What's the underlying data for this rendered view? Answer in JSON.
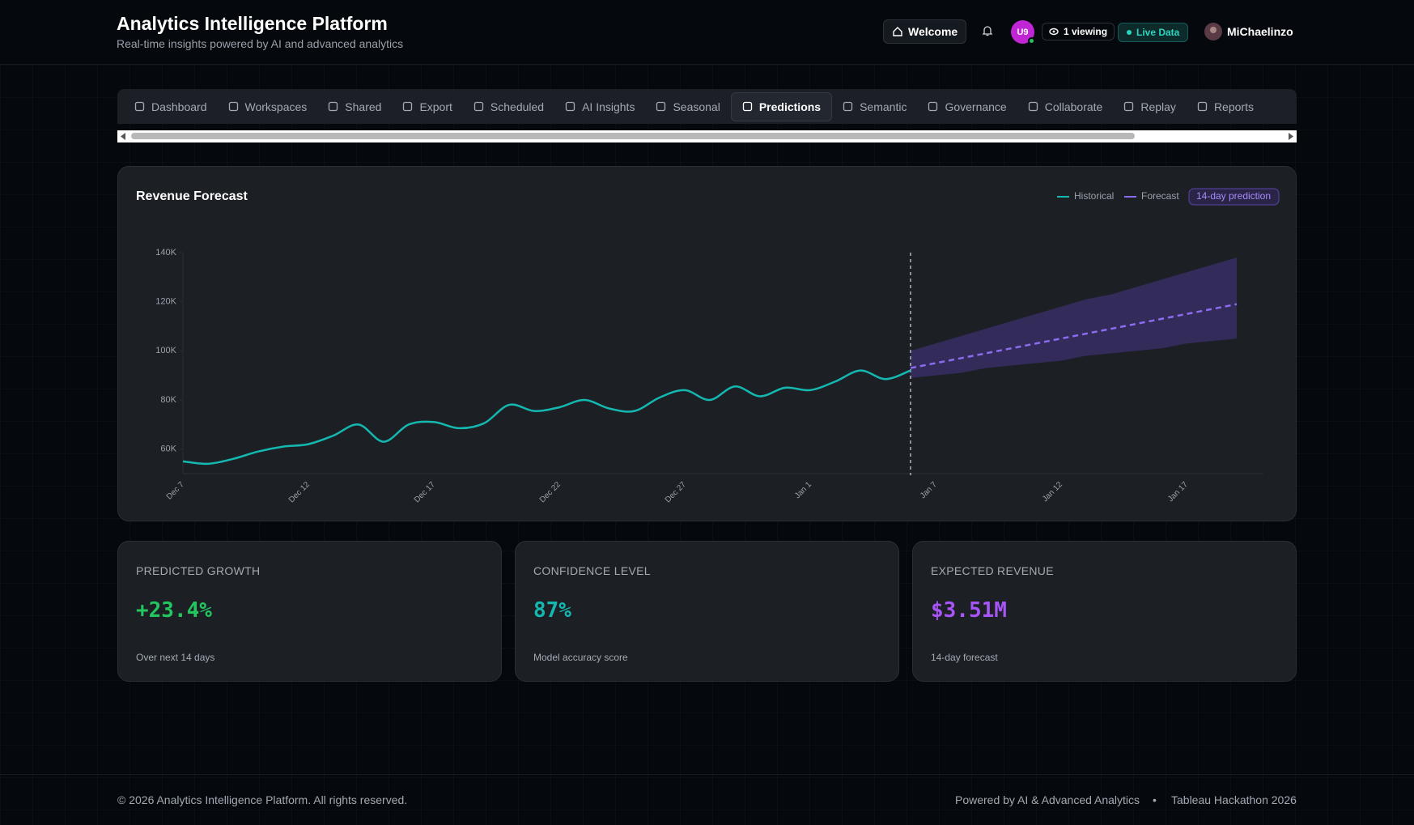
{
  "header": {
    "title": "Analytics Intelligence Platform",
    "subtitle": "Real-time insights powered by AI and advanced analytics",
    "welcome": "Welcome",
    "avatar": "U9",
    "viewers": "1 viewing",
    "live": "Live Data",
    "user": "MiChaelinzo"
  },
  "nav": {
    "tabs": [
      "Dashboard",
      "Workspaces",
      "Shared",
      "Export",
      "Scheduled",
      "AI Insights",
      "Seasonal",
      "Predictions",
      "Semantic",
      "Governance",
      "Collaborate",
      "Replay",
      "Reports"
    ],
    "active": 7
  },
  "chart_data": {
    "type": "line",
    "title": "Revenue Forecast",
    "badge": "14-day prediction",
    "categories": [
      "Dec 7",
      null,
      null,
      null,
      null,
      "Dec 12",
      null,
      null,
      null,
      null,
      "Dec 17",
      null,
      null,
      null,
      null,
      "Dec 22",
      null,
      null,
      null,
      null,
      "Dec 27",
      null,
      null,
      null,
      null,
      "Jan 1",
      null,
      null,
      null,
      null,
      "Jan 7",
      null,
      null,
      null,
      null,
      "Jan 12",
      null,
      null,
      null,
      null,
      "Jan 17",
      null,
      null
    ],
    "series": [
      {
        "name": "Historical",
        "color": "#14b8b0",
        "style": "solid",
        "values": [
          55000,
          54000,
          56000,
          59000,
          61000,
          62000,
          65500,
          70000,
          63000,
          70000,
          71000,
          68500,
          70500,
          78000,
          75500,
          77000,
          80000,
          76500,
          75500,
          81000,
          84000,
          80000,
          85500,
          81500,
          85000,
          84000,
          87500,
          92000,
          88500,
          92000,
          null,
          null,
          null,
          null,
          null,
          null,
          null,
          null,
          null,
          null,
          null,
          null,
          null
        ]
      },
      {
        "name": "Forecast",
        "color": "#8b6cf0",
        "style": "dashed",
        "values": [
          null,
          null,
          null,
          null,
          null,
          null,
          null,
          null,
          null,
          null,
          null,
          null,
          null,
          null,
          null,
          null,
          null,
          null,
          null,
          null,
          null,
          null,
          null,
          null,
          null,
          null,
          null,
          null,
          null,
          93000,
          95000,
          97000,
          99000,
          101000,
          103000,
          105000,
          107000,
          109000,
          111000,
          113000,
          115000,
          117000,
          119000
        ]
      }
    ],
    "band": {
      "color": "#3b2f6b",
      "upper": [
        null,
        null,
        null,
        null,
        null,
        null,
        null,
        null,
        null,
        null,
        null,
        null,
        null,
        null,
        null,
        null,
        null,
        null,
        null,
        null,
        null,
        null,
        null,
        null,
        null,
        null,
        null,
        null,
        null,
        100000,
        103000,
        106000,
        109000,
        112000,
        115000,
        118000,
        121000,
        123000,
        126000,
        129000,
        132000,
        135000,
        138000
      ],
      "lower": [
        null,
        null,
        null,
        null,
        null,
        null,
        null,
        null,
        null,
        null,
        null,
        null,
        null,
        null,
        null,
        null,
        null,
        null,
        null,
        null,
        null,
        null,
        null,
        null,
        null,
        null,
        null,
        null,
        null,
        89000,
        90000,
        91000,
        93000,
        94000,
        95000,
        96000,
        98000,
        99000,
        100000,
        101000,
        103000,
        104000,
        105000
      ]
    },
    "ylim": [
      50000,
      140000
    ],
    "yticks": [
      {
        "value": 60000,
        "label": "60K"
      },
      {
        "value": 80000,
        "label": "80K"
      },
      {
        "value": 100000,
        "label": "100K"
      },
      {
        "value": 120000,
        "label": "120K"
      },
      {
        "value": 140000,
        "label": "140K"
      }
    ],
    "grid": false
  },
  "stats": [
    {
      "label": "PREDICTED GROWTH",
      "value": "+23.4%",
      "note": "Over next 14 days",
      "color": "#22c55e"
    },
    {
      "label": "CONFIDENCE LEVEL",
      "value": "87%",
      "note": "Model accuracy score",
      "color": "#14b8b0"
    },
    {
      "label": "EXPECTED REVENUE",
      "value": "$3.51M",
      "note": "14-day forecast",
      "color": "#a855f7"
    }
  ],
  "footer": {
    "copyright": "© 2026 Analytics Intelligence Platform. All rights reserved.",
    "powered": "Powered by AI & Advanced Analytics",
    "separator": "•",
    "event": "Tableau Hackathon 2026"
  }
}
